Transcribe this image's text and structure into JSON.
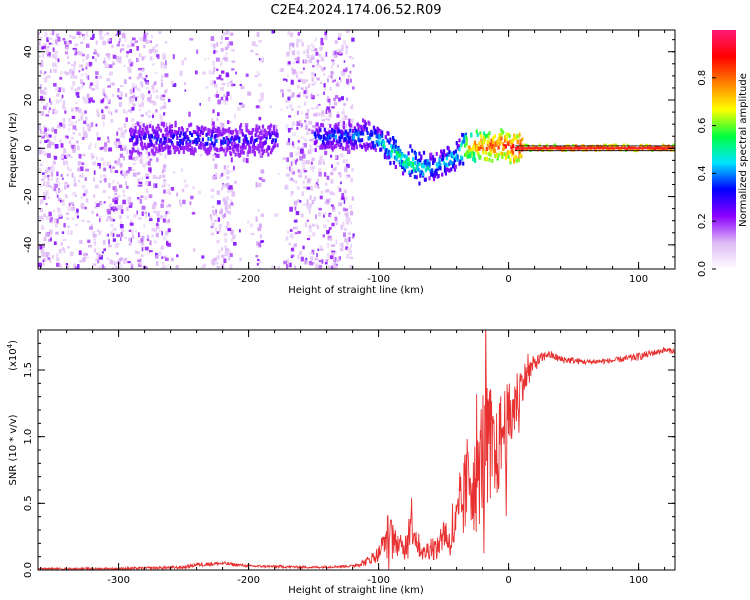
{
  "title": "C2E4.2024.174.06.52.R09",
  "chart_data": [
    {
      "type": "heatmap",
      "xlabel": "Height of straight line (km)",
      "ylabel": "Frequency (Hz)",
      "xlim": [
        -362,
        128
      ],
      "ylim": [
        -50,
        49
      ],
      "xticks": [
        -300,
        -200,
        -100,
        0,
        100
      ],
      "xtick_labels": [
        "-300",
        "-200",
        "-100",
        "0",
        "100"
      ],
      "yticks": [
        -40,
        -20,
        0,
        20,
        40
      ],
      "ytick_labels": [
        "-40",
        "-20",
        "0",
        "20",
        "40"
      ],
      "colorbar": {
        "label": "Normalized spectral amplitude",
        "range": [
          0,
          1
        ],
        "ticks": [
          0.0,
          0.2,
          0.4,
          0.6,
          0.8
        ],
        "tick_labels": [
          "0.0",
          "0.2",
          "0.4",
          "0.6",
          "0.8"
        ],
        "colors": [
          "#ffffff",
          "#ddb8f5",
          "#8a00ff",
          "#0000ff",
          "#00e5ff",
          "#00ff40",
          "#ffff00",
          "#ff8000",
          "#ff0000",
          "#ff1a75"
        ]
      },
      "ridge": {
        "x": [
          -300,
          -250,
          -200,
          -150,
          -110,
          -100,
          -90,
          -80,
          -70,
          -60,
          -50,
          -40,
          -35,
          -30,
          -20,
          -10,
          0,
          5,
          50,
          128
        ],
        "y": [
          4,
          4,
          3,
          5,
          5,
          3,
          -1,
          -5,
          -8,
          -8,
          -6,
          -3,
          0,
          1,
          1,
          1,
          1,
          0,
          0,
          0
        ],
        "intensity": [
          0.3,
          0.35,
          0.3,
          0.35,
          0.4,
          0.45,
          0.5,
          0.55,
          0.5,
          0.45,
          0.45,
          0.45,
          0.6,
          0.75,
          0.8,
          0.85,
          0.85,
          0.9,
          0.9,
          0.9
        ]
      },
      "noise_region_x": [
        -362,
        -120
      ],
      "noise_gaps_x": [
        [
          -262,
          -230
        ],
        [
          -212,
          -195
        ],
        [
          -190,
          -172
        ]
      ]
    },
    {
      "type": "line",
      "xlabel": "Height of straight line (km)",
      "ylabel": "SNR (10 * v/v)",
      "yscale_label": "(x10",
      "yscale_exp": "4",
      "yscale_close": ")",
      "xlim": [
        -362,
        128
      ],
      "ylim": [
        0,
        1.8
      ],
      "xticks": [
        -300,
        -200,
        -100,
        0,
        100
      ],
      "xtick_labels": [
        "-300",
        "-200",
        "-100",
        "0",
        "100"
      ],
      "yticks": [
        0.0,
        0.5,
        1.0,
        1.5
      ],
      "ytick_labels": [
        "0.0",
        "0.5",
        "1.0",
        "1.5"
      ],
      "line_color": "#e83030",
      "series": [
        {
          "name": "SNR",
          "x": [
            -362,
            -300,
            -250,
            -240,
            -220,
            -200,
            -150,
            -120,
            -110,
            -100,
            -92,
            -88,
            -80,
            -75,
            -70,
            -65,
            -60,
            -55,
            -50,
            -45,
            -40,
            -35,
            -30,
            -25,
            -20,
            -15,
            -10,
            -5,
            0,
            5,
            10,
            20,
            30,
            40,
            60,
            80,
            100,
            120,
            128
          ],
          "y": [
            0.01,
            0.01,
            0.02,
            0.04,
            0.05,
            0.03,
            0.02,
            0.03,
            0.06,
            0.12,
            0.3,
            0.22,
            0.15,
            0.4,
            0.2,
            0.12,
            0.18,
            0.15,
            0.3,
            0.2,
            0.35,
            0.5,
            0.75,
            0.6,
            0.9,
            1.0,
            0.8,
            1.05,
            1.1,
            1.25,
            1.4,
            1.55,
            1.62,
            1.58,
            1.56,
            1.57,
            1.6,
            1.65,
            1.64
          ],
          "spread": [
            0.005,
            0.008,
            0.012,
            0.015,
            0.015,
            0.01,
            0.008,
            0.01,
            0.03,
            0.06,
            0.15,
            0.1,
            0.08,
            0.2,
            0.1,
            0.06,
            0.1,
            0.08,
            0.15,
            0.1,
            0.2,
            0.3,
            0.4,
            0.35,
            0.5,
            0.45,
            0.35,
            0.35,
            0.3,
            0.25,
            0.15,
            0.06,
            0.03,
            0.03,
            0.02,
            0.02,
            0.03,
            0.02,
            0.02
          ]
        }
      ]
    }
  ]
}
